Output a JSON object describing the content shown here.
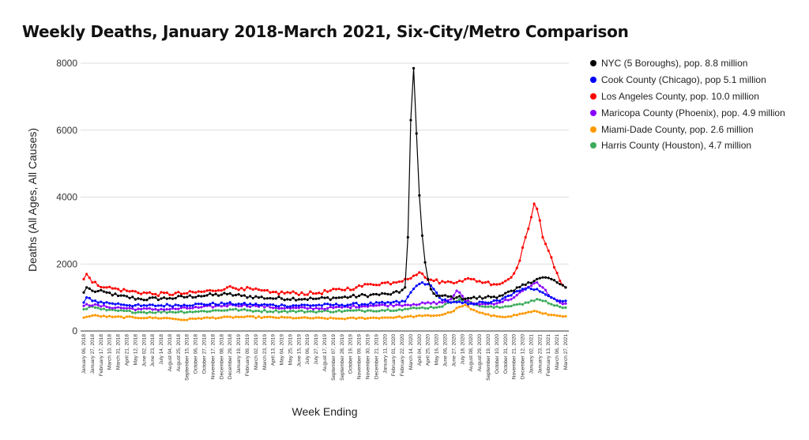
{
  "chart_data": {
    "type": "line",
    "title": "Weekly Deaths, January 2018-March 2021, Six-City/Metro Comparison",
    "xlabel": "Week Ending",
    "ylabel": "Deaths (All Ages, All Causes)",
    "ylim": [
      0,
      8000
    ],
    "yticks": [
      "0",
      "2000",
      "4000",
      "6000",
      "8000"
    ],
    "grid": "horizontal",
    "legend_position": "right",
    "x_start": "2018-01-06",
    "weeks": 169,
    "x_tick_labels": [
      "January 06, 2018",
      "January 27, 2018",
      "February 17, 2018",
      "March 10, 2018",
      "March 31, 2018",
      "April 21, 2018",
      "May 12, 2018",
      "June 02, 2018",
      "June 23, 2018",
      "July 14, 2018",
      "August 04, 2018",
      "August 25, 2018",
      "September 15, 2018",
      "October 06, 2018",
      "October 27, 2018",
      "November 17, 2018",
      "December 08, 2018",
      "December 29, 2018",
      "January 19, 2019",
      "February 09, 2019",
      "March 02, 2019",
      "March 23, 2019",
      "April 13, 2019",
      "May 04, 2019",
      "May 25, 2019",
      "June 15, 2019",
      "July 06, 2019",
      "July 27, 2019",
      "August 17, 2019",
      "September 07, 2019",
      "September 28, 2019",
      "October 19, 2019",
      "November 09, 2019",
      "November 30, 2019",
      "December 21, 2019",
      "January 11, 2020",
      "February 01, 2020",
      "February 22, 2020",
      "March 14, 2020",
      "April 04, 2020",
      "April 25, 2020",
      "May 16, 2020",
      "June 06, 2020",
      "June 27, 2020",
      "July 18, 2020",
      "August 08, 2020",
      "August 29, 2020",
      "September 19, 2020",
      "October 10, 2020",
      "October 31, 2020",
      "November 21, 2020",
      "December 12, 2020",
      "January 02, 2021",
      "January 23, 2021",
      "February 13, 2021",
      "March 06, 2021",
      "March 27, 2021"
    ],
    "series": [
      {
        "name": "NYC (5 Boroughs), pop. 8.8 million",
        "color": "#000000",
        "keypoints": [
          [
            0,
            1150
          ],
          [
            1,
            1300
          ],
          [
            3,
            1200
          ],
          [
            8,
            1150
          ],
          [
            12,
            1050
          ],
          [
            20,
            950
          ],
          [
            30,
            980
          ],
          [
            40,
            1050
          ],
          [
            50,
            1100
          ],
          [
            55,
            1050
          ],
          [
            65,
            980
          ],
          [
            80,
            960
          ],
          [
            90,
            1000
          ],
          [
            100,
            1080
          ],
          [
            106,
            1100
          ],
          [
            110,
            1150
          ],
          [
            112,
            1300
          ],
          [
            113,
            2800
          ],
          [
            114,
            6300
          ],
          [
            115,
            7850
          ],
          [
            116,
            5900
          ],
          [
            117,
            4050
          ],
          [
            118,
            2850
          ],
          [
            119,
            2050
          ],
          [
            120,
            1550
          ],
          [
            121,
            1250
          ],
          [
            123,
            1050
          ],
          [
            130,
            1000
          ],
          [
            135,
            980
          ],
          [
            140,
            1000
          ],
          [
            145,
            1050
          ],
          [
            150,
            1200
          ],
          [
            155,
            1450
          ],
          [
            158,
            1550
          ],
          [
            160,
            1600
          ],
          [
            163,
            1550
          ],
          [
            166,
            1400
          ],
          [
            168,
            1300
          ]
        ],
        "noise": 50
      },
      {
        "name": "Cook County (Chicago), pop 5.1 million",
        "color": "#0000ff",
        "keypoints": [
          [
            0,
            850
          ],
          [
            1,
            1000
          ],
          [
            3,
            900
          ],
          [
            10,
            820
          ],
          [
            20,
            750
          ],
          [
            35,
            780
          ],
          [
            50,
            820
          ],
          [
            55,
            800
          ],
          [
            70,
            760
          ],
          [
            90,
            780
          ],
          [
            105,
            830
          ],
          [
            112,
            880
          ],
          [
            114,
            1150
          ],
          [
            116,
            1350
          ],
          [
            118,
            1450
          ],
          [
            120,
            1400
          ],
          [
            122,
            1250
          ],
          [
            124,
            1000
          ],
          [
            128,
            850
          ],
          [
            135,
            820
          ],
          [
            140,
            850
          ],
          [
            145,
            900
          ],
          [
            148,
            1050
          ],
          [
            152,
            1200
          ],
          [
            155,
            1300
          ],
          [
            158,
            1250
          ],
          [
            160,
            1150
          ],
          [
            163,
            1000
          ],
          [
            166,
            900
          ],
          [
            168,
            900
          ]
        ],
        "noise": 40
      },
      {
        "name": "Los Angeles County, pop. 10.0 million",
        "color": "#ff0000",
        "keypoints": [
          [
            0,
            1550
          ],
          [
            1,
            1700
          ],
          [
            3,
            1450
          ],
          [
            8,
            1300
          ],
          [
            15,
            1200
          ],
          [
            25,
            1100
          ],
          [
            35,
            1120
          ],
          [
            45,
            1200
          ],
          [
            50,
            1300
          ],
          [
            55,
            1280
          ],
          [
            65,
            1150
          ],
          [
            80,
            1120
          ],
          [
            95,
            1300
          ],
          [
            100,
            1400
          ],
          [
            108,
            1450
          ],
          [
            112,
            1550
          ],
          [
            115,
            1650
          ],
          [
            117,
            1750
          ],
          [
            119,
            1600
          ],
          [
            122,
            1500
          ],
          [
            126,
            1450
          ],
          [
            131,
            1500
          ],
          [
            135,
            1550
          ],
          [
            140,
            1450
          ],
          [
            145,
            1400
          ],
          [
            149,
            1600
          ],
          [
            152,
            2100
          ],
          [
            154,
            2800
          ],
          [
            156,
            3400
          ],
          [
            157,
            3800
          ],
          [
            158,
            3650
          ],
          [
            159,
            3300
          ],
          [
            160,
            2800
          ],
          [
            162,
            2400
          ],
          [
            164,
            1900
          ],
          [
            166,
            1500
          ],
          [
            168,
            1300
          ]
        ],
        "noise": 55
      },
      {
        "name": "Maricopa County (Phoenix), pop. 4.9 million",
        "color": "#8a00ff",
        "keypoints": [
          [
            0,
            750
          ],
          [
            1,
            800
          ],
          [
            8,
            720
          ],
          [
            20,
            650
          ],
          [
            30,
            650
          ],
          [
            40,
            700
          ],
          [
            52,
            780
          ],
          [
            60,
            750
          ],
          [
            70,
            680
          ],
          [
            85,
            680
          ],
          [
            100,
            760
          ],
          [
            110,
            780
          ],
          [
            115,
            800
          ],
          [
            125,
            850
          ],
          [
            128,
            950
          ],
          [
            130,
            1200
          ],
          [
            131,
            1150
          ],
          [
            133,
            900
          ],
          [
            136,
            820
          ],
          [
            140,
            800
          ],
          [
            145,
            850
          ],
          [
            150,
            1000
          ],
          [
            153,
            1200
          ],
          [
            156,
            1350
          ],
          [
            158,
            1450
          ],
          [
            160,
            1300
          ],
          [
            163,
            1000
          ],
          [
            166,
            850
          ],
          [
            168,
            820
          ]
        ],
        "noise": 35
      },
      {
        "name": "Miami-Dade County, pop. 2.6 million",
        "color": "#ff9900",
        "keypoints": [
          [
            0,
            400
          ],
          [
            3,
            460
          ],
          [
            10,
            420
          ],
          [
            30,
            380
          ],
          [
            35,
            330
          ],
          [
            40,
            380
          ],
          [
            55,
            420
          ],
          [
            75,
            390
          ],
          [
            90,
            370
          ],
          [
            105,
            400
          ],
          [
            112,
            420
          ],
          [
            118,
            450
          ],
          [
            124,
            470
          ],
          [
            128,
            560
          ],
          [
            131,
            720
          ],
          [
            133,
            780
          ],
          [
            135,
            650
          ],
          [
            138,
            550
          ],
          [
            142,
            450
          ],
          [
            148,
            430
          ],
          [
            153,
            520
          ],
          [
            157,
            600
          ],
          [
            160,
            520
          ],
          [
            163,
            480
          ],
          [
            166,
            450
          ],
          [
            168,
            440
          ]
        ],
        "noise": 22
      },
      {
        "name": "Harris County (Houston), 4.7 million",
        "color": "#3cab5a",
        "keypoints": [
          [
            0,
            650
          ],
          [
            2,
            720
          ],
          [
            8,
            620
          ],
          [
            20,
            560
          ],
          [
            40,
            580
          ],
          [
            52,
            640
          ],
          [
            60,
            600
          ],
          [
            80,
            580
          ],
          [
            100,
            610
          ],
          [
            110,
            640
          ],
          [
            116,
            680
          ],
          [
            124,
            720
          ],
          [
            128,
            850
          ],
          [
            131,
            950
          ],
          [
            133,
            920
          ],
          [
            136,
            800
          ],
          [
            140,
            720
          ],
          [
            145,
            700
          ],
          [
            150,
            780
          ],
          [
            155,
            850
          ],
          [
            158,
            950
          ],
          [
            160,
            900
          ],
          [
            163,
            800
          ],
          [
            166,
            720
          ],
          [
            168,
            700
          ]
        ],
        "noise": 30
      }
    ]
  }
}
